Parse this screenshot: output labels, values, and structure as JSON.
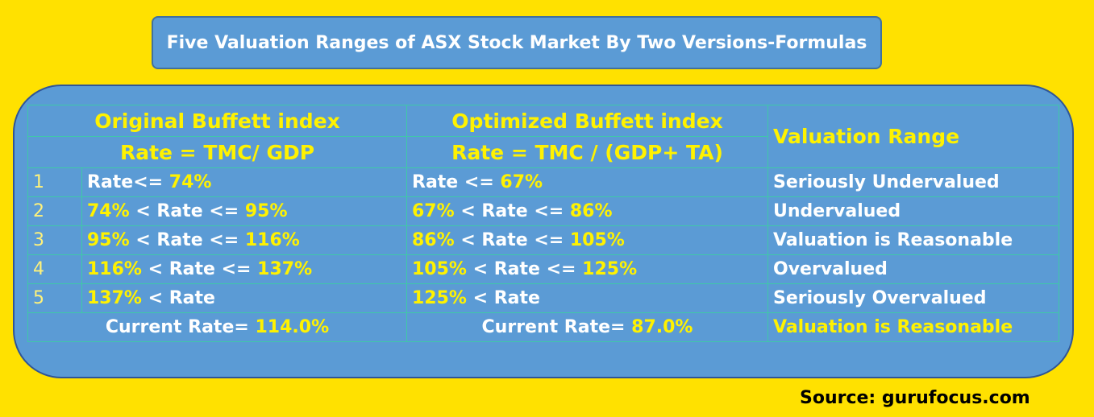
{
  "title": "Five Valuation Ranges of ASX Stock Market By Two Versions-Formulas",
  "header": {
    "original": "Original Buffett index",
    "original_formula": "Rate = TMC/ GDP",
    "optimized": "Optimized Buffett index",
    "optimized_formula": "Rate = TMC / (GDP+ TA)",
    "valuation": "Valuation Range"
  },
  "rows": [
    {
      "index": "1",
      "original": [
        "Rate<=",
        "74%"
      ],
      "optimized": [
        "Rate <=",
        "67%"
      ],
      "valuation": "Seriously Undervalued"
    },
    {
      "index": "2",
      "original": [
        "74%",
        "< Rate <=",
        "95%"
      ],
      "optimized": [
        "67%",
        "< Rate <=",
        "86%"
      ],
      "valuation": "Undervalued"
    },
    {
      "index": "3",
      "original": [
        "95%",
        "< Rate <=",
        "116%"
      ],
      "optimized": [
        "86%",
        "< Rate <=",
        "105%"
      ],
      "valuation": "Valuation is Reasonable"
    },
    {
      "index": "4",
      "original": [
        "116%",
        "< Rate <=",
        "137%"
      ],
      "optimized": [
        "105%",
        "< Rate <=",
        "125%"
      ],
      "valuation": "Overvalued"
    },
    {
      "index": "5",
      "original": [
        "137%",
        "< Rate"
      ],
      "optimized": [
        "125%",
        "< Rate"
      ],
      "valuation": "Seriously Overvalued"
    }
  ],
  "current": {
    "original": [
      "Current Rate=",
      "114.0%"
    ],
    "optimized": [
      "Current Rate=",
      "87.0%"
    ],
    "valuation": "Valuation is Reasonable"
  },
  "source": "Source: gurufocus.com"
}
